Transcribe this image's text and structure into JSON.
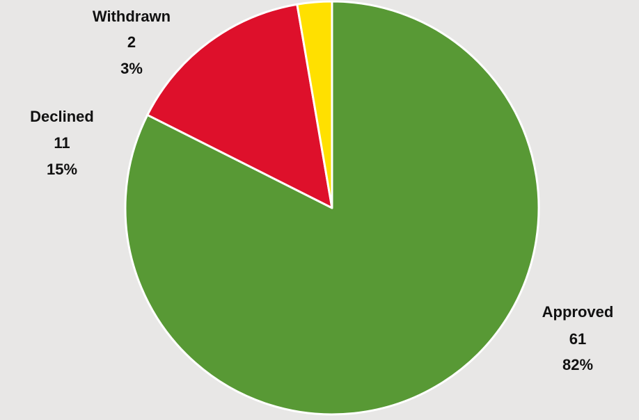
{
  "chart_data": {
    "type": "pie",
    "start_angle_deg": 0,
    "direction": "clockwise",
    "colors": {
      "Approved": "#589935",
      "Declined": "#de102b",
      "Withdrawn": "#ffe000",
      "background": "#e8e7e6",
      "slice_border": "#ffffff"
    },
    "slices": [
      {
        "label": "Approved",
        "value": 61,
        "percent": "82%",
        "count": "61"
      },
      {
        "label": "Declined",
        "value": 11,
        "percent": "15%",
        "count": "11"
      },
      {
        "label": "Withdrawn",
        "value": 2,
        "percent": "3%",
        "count": "2"
      }
    ]
  }
}
